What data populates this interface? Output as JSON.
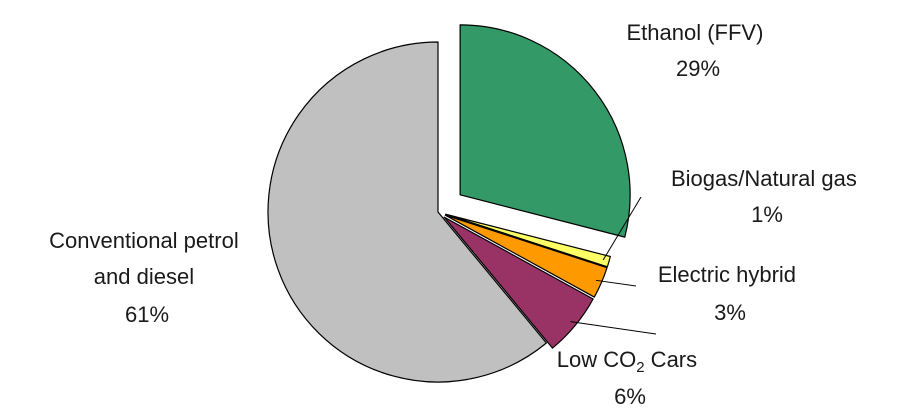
{
  "chart_data": {
    "type": "pie",
    "title": "",
    "slices": [
      {
        "key": "ethanol",
        "label_lines": [
          "Ethanol (FFV)",
          "29%"
        ],
        "value": 29,
        "color": "#339966"
      },
      {
        "key": "biogas",
        "label_lines": [
          "Biogas/Natural gas",
          "1%"
        ],
        "value": 1,
        "color": "#FFFF66"
      },
      {
        "key": "electric",
        "label_lines": [
          "Electric hybrid",
          "3%"
        ],
        "value": 3,
        "color": "#FF9900"
      },
      {
        "key": "lowco2",
        "label_lines": [
          "Low CO",
          "2",
          " Cars",
          "6%"
        ],
        "value": 6,
        "color": "#993366"
      },
      {
        "key": "conventional",
        "label_lines": [
          "Conventional petrol",
          "and diesel",
          "61%"
        ],
        "value": 61,
        "color": "#C0C0C0"
      }
    ]
  }
}
